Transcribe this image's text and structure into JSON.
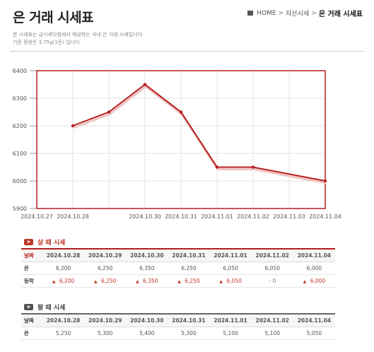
{
  "page": {
    "title": "은 거래 시세표",
    "breadcrumb": {
      "home": "HOME",
      "section": "자산시세",
      "current": "은 거래 시세표"
    },
    "description": [
      "본 시세표는 금시세닷컴에서 제공하는 국내 은 거래 시세입니다.",
      "기준 중량은 3.75g(1돈) 입니다."
    ]
  },
  "chart_data": {
    "type": "line",
    "x": [
      "2024.10.28",
      "2024.10.29",
      "2024.10.30",
      "2024.10.31",
      "2024.11.01",
      "2024.11.02",
      "2024.11.04"
    ],
    "series": [
      {
        "values": [
          6200,
          6250,
          6350,
          6250,
          6050,
          6050,
          6000
        ]
      }
    ],
    "xticks": [
      "2024.10.27",
      "2024.10.28",
      "2024.10.30",
      "2024.10.31",
      "2024.11.01",
      "2024.11.02",
      "2024.11.03",
      "2024.11.04"
    ],
    "yticks": [
      5900,
      6000,
      6100,
      6200,
      6300,
      6400
    ],
    "ylim": [
      5900,
      6400
    ],
    "xlim": [
      "2024.10.27",
      "2024.11.04"
    ],
    "grid": true,
    "line_color": "#b71c1c"
  },
  "buy": {
    "section_title": "살 때 시세",
    "header_label": "날짜",
    "dates": [
      "2024.10.28",
      "2024.10.29",
      "2024.10.30",
      "2024.10.31",
      "2024.11.01",
      "2024.11.02",
      "2024.11.04"
    ],
    "price_label": "은",
    "prices": [
      "6,200",
      "6,250",
      "6,350",
      "6,250",
      "6,050",
      "6,050",
      "6,000"
    ],
    "change_label": "등락",
    "changes": [
      {
        "dir": "up",
        "value": "6,200"
      },
      {
        "dir": "up",
        "value": "6,250"
      },
      {
        "dir": "up",
        "value": "6,350"
      },
      {
        "dir": "up",
        "value": "6,250"
      },
      {
        "dir": "up",
        "value": "6,050"
      },
      {
        "dir": "flat",
        "value": "0"
      },
      {
        "dir": "up",
        "value": "6,000"
      }
    ],
    "up_symbol": "▲",
    "flat_symbol": "-"
  },
  "sell": {
    "section_title": "팔 때 시세",
    "header_label": "날짜",
    "dates": [
      "2024.10.28",
      "2024.10.29",
      "2024.10.30",
      "2024.10.31",
      "2024.11.01",
      "2024.11.02",
      "2024.11.04"
    ],
    "price_label": "은",
    "prices": [
      "5,250",
      "5,300",
      "5,400",
      "5,300",
      "5,100",
      "5,100",
      "5,050"
    ]
  }
}
